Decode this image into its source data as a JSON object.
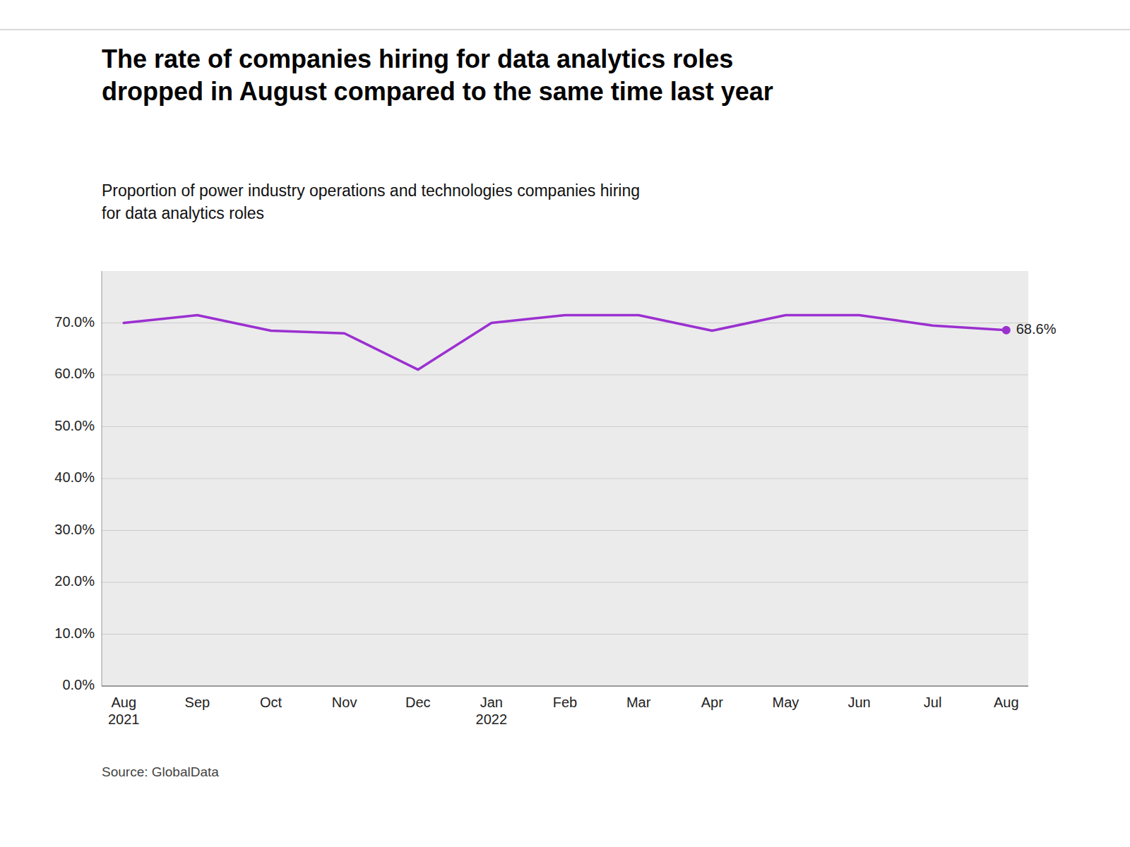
{
  "chart_data": {
    "type": "line",
    "title": "The rate of companies hiring for data analytics roles\ndropped in August compared to the same time last year",
    "subtitle": "Proportion of power industry operations and technologies companies hiring\nfor data analytics roles",
    "source": "Source: GlobalData",
    "annotation": "68.6%",
    "categories": [
      "Aug\n2021",
      "Sep",
      "Oct",
      "Nov",
      "Dec",
      "Jan\n2022",
      "Feb",
      "Mar",
      "Apr",
      "May",
      "Jun",
      "Jul",
      "Aug"
    ],
    "values": [
      70.0,
      71.5,
      68.5,
      68.0,
      61.0,
      70.0,
      71.5,
      71.5,
      68.5,
      71.5,
      71.5,
      69.5,
      68.6
    ],
    "color": "#9b30d0",
    "ylim": [
      0,
      80
    ],
    "yticks": [
      {
        "value": 0,
        "label": "0.0%"
      },
      {
        "value": 10,
        "label": "10.0%"
      },
      {
        "value": 20,
        "label": "20.0%"
      },
      {
        "value": 30,
        "label": "30.0%"
      },
      {
        "value": 40,
        "label": "40.0%"
      },
      {
        "value": 50,
        "label": "50.0%"
      },
      {
        "value": 60,
        "label": "60.0%"
      },
      {
        "value": 70,
        "label": "70.0%"
      }
    ],
    "grid": true
  }
}
